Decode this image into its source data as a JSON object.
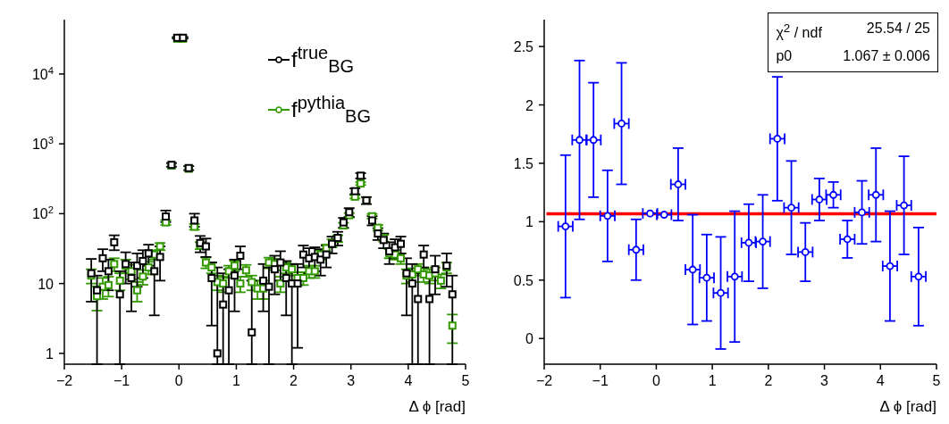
{
  "chart_data": [
    {
      "type": "scatter",
      "xlabel": "Δ ϕ [rad]",
      "log": "y",
      "legend": "top right",
      "xlim": [
        -2,
        5
      ],
      "xticks": [
        -2,
        -1,
        0,
        1,
        2,
        3,
        4,
        5
      ],
      "ylim": [
        0.7,
        60000
      ],
      "yticks": [
        1,
        10,
        {
          "value": 100,
          "label": "10$^{2}$"
        },
        {
          "value": 1000,
          "label": "10$^{3}$"
        },
        {
          "value": 10000,
          "label": "10$^{4}$"
        }
      ],
      "x": [
        -1.53,
        -1.43,
        -1.33,
        -1.23,
        -1.13,
        -1.03,
        -0.93,
        -0.83,
        -0.73,
        -0.63,
        -0.53,
        -0.43,
        -0.33,
        -0.23,
        -0.13,
        -0.03,
        0.07,
        0.17,
        0.27,
        0.37,
        0.47,
        0.57,
        0.67,
        0.77,
        0.87,
        0.97,
        1.07,
        1.17,
        1.27,
        1.37,
        1.47,
        1.57,
        1.67,
        1.77,
        1.87,
        1.97,
        2.07,
        2.17,
        2.27,
        2.37,
        2.47,
        2.57,
        2.67,
        2.77,
        2.87,
        2.97,
        3.07,
        3.17,
        3.27,
        3.37,
        3.47,
        3.57,
        3.67,
        3.77,
        3.87,
        3.97,
        4.07,
        4.17,
        4.27,
        4.37,
        4.47,
        4.57,
        4.67,
        4.77
      ],
      "series": [
        {
          "name": "f$^{true}$$_{BG}$",
          "color": "#000000",
          "marker": "square",
          "values": [
            14,
            8,
            23,
            15,
            39,
            7,
            19,
            12,
            18,
            21,
            27,
            15,
            24,
            91,
            500,
            33000,
            33000,
            450,
            80,
            38,
            34,
            12,
            1,
            5,
            8,
            13,
            25,
            null,
            2,
            null,
            11,
            9,
            16,
            20,
            12,
            10,
            10,
            26,
            23,
            24,
            22,
            26,
            37,
            45,
            75,
            105,
            210,
            350,
            155,
            80,
            52,
            42,
            29,
            33,
            37,
            14,
            10,
            6,
            26,
            6,
            16,
            null,
            18,
            7
          ],
          "errors": [
            [
              5.5,
              22.5
            ],
            [
              0.7,
              13
            ],
            [
              15,
              31
            ],
            [
              8,
              22
            ],
            [
              30,
              49
            ],
            [
              0.7,
              15
            ],
            [
              10,
              28
            ],
            [
              4,
              20
            ],
            [
              9,
              27
            ],
            [
              12,
              30
            ],
            [
              18,
              36
            ],
            [
              3.5,
              24
            ],
            [
              11,
              34
            ],
            [
              76,
              111
            ],
            [
              470,
              530
            ],
            [
              32200,
              33800
            ],
            [
              32200,
              33800
            ],
            [
              420,
              480
            ],
            [
              65,
              100
            ],
            [
              28,
              48
            ],
            [
              24,
              44
            ],
            [
              2.5,
              20
            ],
            [
              0.7,
              17
            ],
            [
              0.7,
              14
            ],
            [
              0.7,
              16
            ],
            [
              4,
              22
            ],
            [
              16,
              34
            ],
            null,
            [
              0.7,
              11
            ],
            null,
            [
              4,
              19
            ],
            [
              0.7,
              17
            ],
            [
              7,
              25
            ],
            [
              11,
              29
            ],
            [
              3.5,
              21
            ],
            [
              0.7,
              19
            ],
            [
              1.2,
              19
            ],
            [
              17,
              35
            ],
            [
              14,
              32
            ],
            [
              15,
              33
            ],
            [
              13,
              31
            ],
            [
              17,
              35
            ],
            [
              27,
              47
            ],
            [
              35,
              55
            ],
            [
              63,
              87
            ],
            [
              90,
              120
            ],
            [
              190,
              230
            ],
            [
              320,
              380
            ],
            [
              137,
              173
            ],
            [
              68,
              92
            ],
            [
              42,
              62
            ],
            [
              32,
              52
            ],
            [
              19,
              39
            ],
            [
              23,
              43
            ],
            [
              27,
              47
            ],
            [
              3.5,
              23
            ],
            [
              0.7,
              19
            ],
            [
              0.7,
              14
            ],
            [
              17,
              35
            ],
            [
              0.7,
              14
            ],
            [
              7,
              25
            ],
            null,
            [
              9,
              27
            ],
            [
              0.7,
              13
            ]
          ]
        },
        {
          "name": "f$^{pythia}$$_{BG}$",
          "color": "#339900",
          "marker": "square",
          "values": [
            13,
            6.6,
            9,
            9.5,
            19,
            11,
            18,
            15,
            8,
            12.6,
            17,
            26,
            34,
            75,
            490,
            32000,
            32000,
            440,
            65,
            35,
            20,
            17,
            10.5,
            10,
            15,
            18,
            10,
            15.5,
            10.5,
            8.5,
            8.5,
            20,
            19,
            10,
            17,
            16,
            12,
            12,
            15,
            15,
            26,
            32,
            38,
            44,
            68,
            95,
            175,
            270,
            155,
            92,
            63,
            45,
            27,
            26,
            23,
            13,
            13.5,
            16,
            13.5,
            13,
            14,
            11,
            17,
            2.5
          ],
          "errors": [
            3,
            2.5,
            3,
            3,
            4,
            3,
            4,
            3.5,
            2.5,
            3,
            3.5,
            4,
            4,
            6,
            null,
            null,
            null,
            null,
            6,
            4,
            3.5,
            3,
            2.5,
            2.5,
            3,
            3,
            2.5,
            3,
            2.5,
            2.5,
            2.5,
            3.5,
            3.5,
            2.5,
            3,
            3,
            2.5,
            2.5,
            3,
            3,
            4,
            4,
            5,
            5,
            6,
            7,
            10,
            12,
            null,
            7,
            6,
            5,
            4,
            4,
            4,
            3,
            3,
            3,
            3,
            3,
            3,
            2.5,
            3,
            1.1
          ]
        }
      ]
    },
    {
      "type": "scatter",
      "xlabel": "Δ ϕ [rad]",
      "xlim": [
        -2,
        5
      ],
      "xticks": [
        -2,
        -1,
        0,
        1,
        2,
        3,
        4,
        5
      ],
      "ylim": [
        -0.22,
        2.73
      ],
      "yticks": [
        0,
        0.5,
        1,
        1.5,
        2,
        2.5
      ],
      "annotations": [
        "χ$^{2}$ / ndf",
        "25.54 / 25",
        "p0",
        "1.067 ± 0.006"
      ],
      "series": [
        {
          "color": "#0000ff",
          "marker": "circle",
          "x": [
            -1.62,
            -1.37,
            -1.12,
            -0.87,
            -0.62,
            -0.36,
            -0.11,
            0.14,
            0.39,
            0.65,
            0.9,
            1.15,
            1.4,
            1.65,
            1.9,
            2.16,
            2.41,
            2.66,
            2.91,
            3.16,
            3.41,
            3.67,
            3.92,
            4.17,
            4.42,
            4.68
          ],
          "values": [
            0.96,
            1.7,
            1.7,
            1.05,
            1.84,
            0.76,
            1.07,
            1.06,
            1.32,
            0.59,
            0.52,
            0.39,
            0.53,
            0.82,
            0.83,
            1.71,
            1.12,
            0.74,
            1.19,
            1.23,
            0.85,
            1.08,
            1.23,
            0.62,
            1.14,
            0.53
          ],
          "errors": [
            0.61,
            0.68,
            0.49,
            0.39,
            0.52,
            0.26,
            null,
            null,
            0.31,
            0.47,
            0.37,
            0.48,
            0.56,
            0.33,
            0.4,
            0.53,
            0.4,
            0.25,
            0.18,
            0.11,
            0.16,
            0.27,
            0.4,
            0.47,
            0.42,
            0.42
          ],
          "xerrors": [
            0.13,
            0.13,
            0.13,
            0.13,
            0.13,
            0.13,
            0.13,
            0.13,
            0.13,
            0.13,
            0.13,
            0.13,
            0.13,
            0.13,
            0.13,
            0.13,
            0.13,
            0.13,
            0.13,
            0.13,
            0.13,
            0.13,
            0.13,
            0.13,
            0.13,
            0.13
          ]
        },
        {
          "type": "line",
          "color": "#ff0000",
          "x": [
            -1.96,
            5
          ],
          "values": [
            1.067,
            1.067
          ]
        }
      ]
    }
  ]
}
